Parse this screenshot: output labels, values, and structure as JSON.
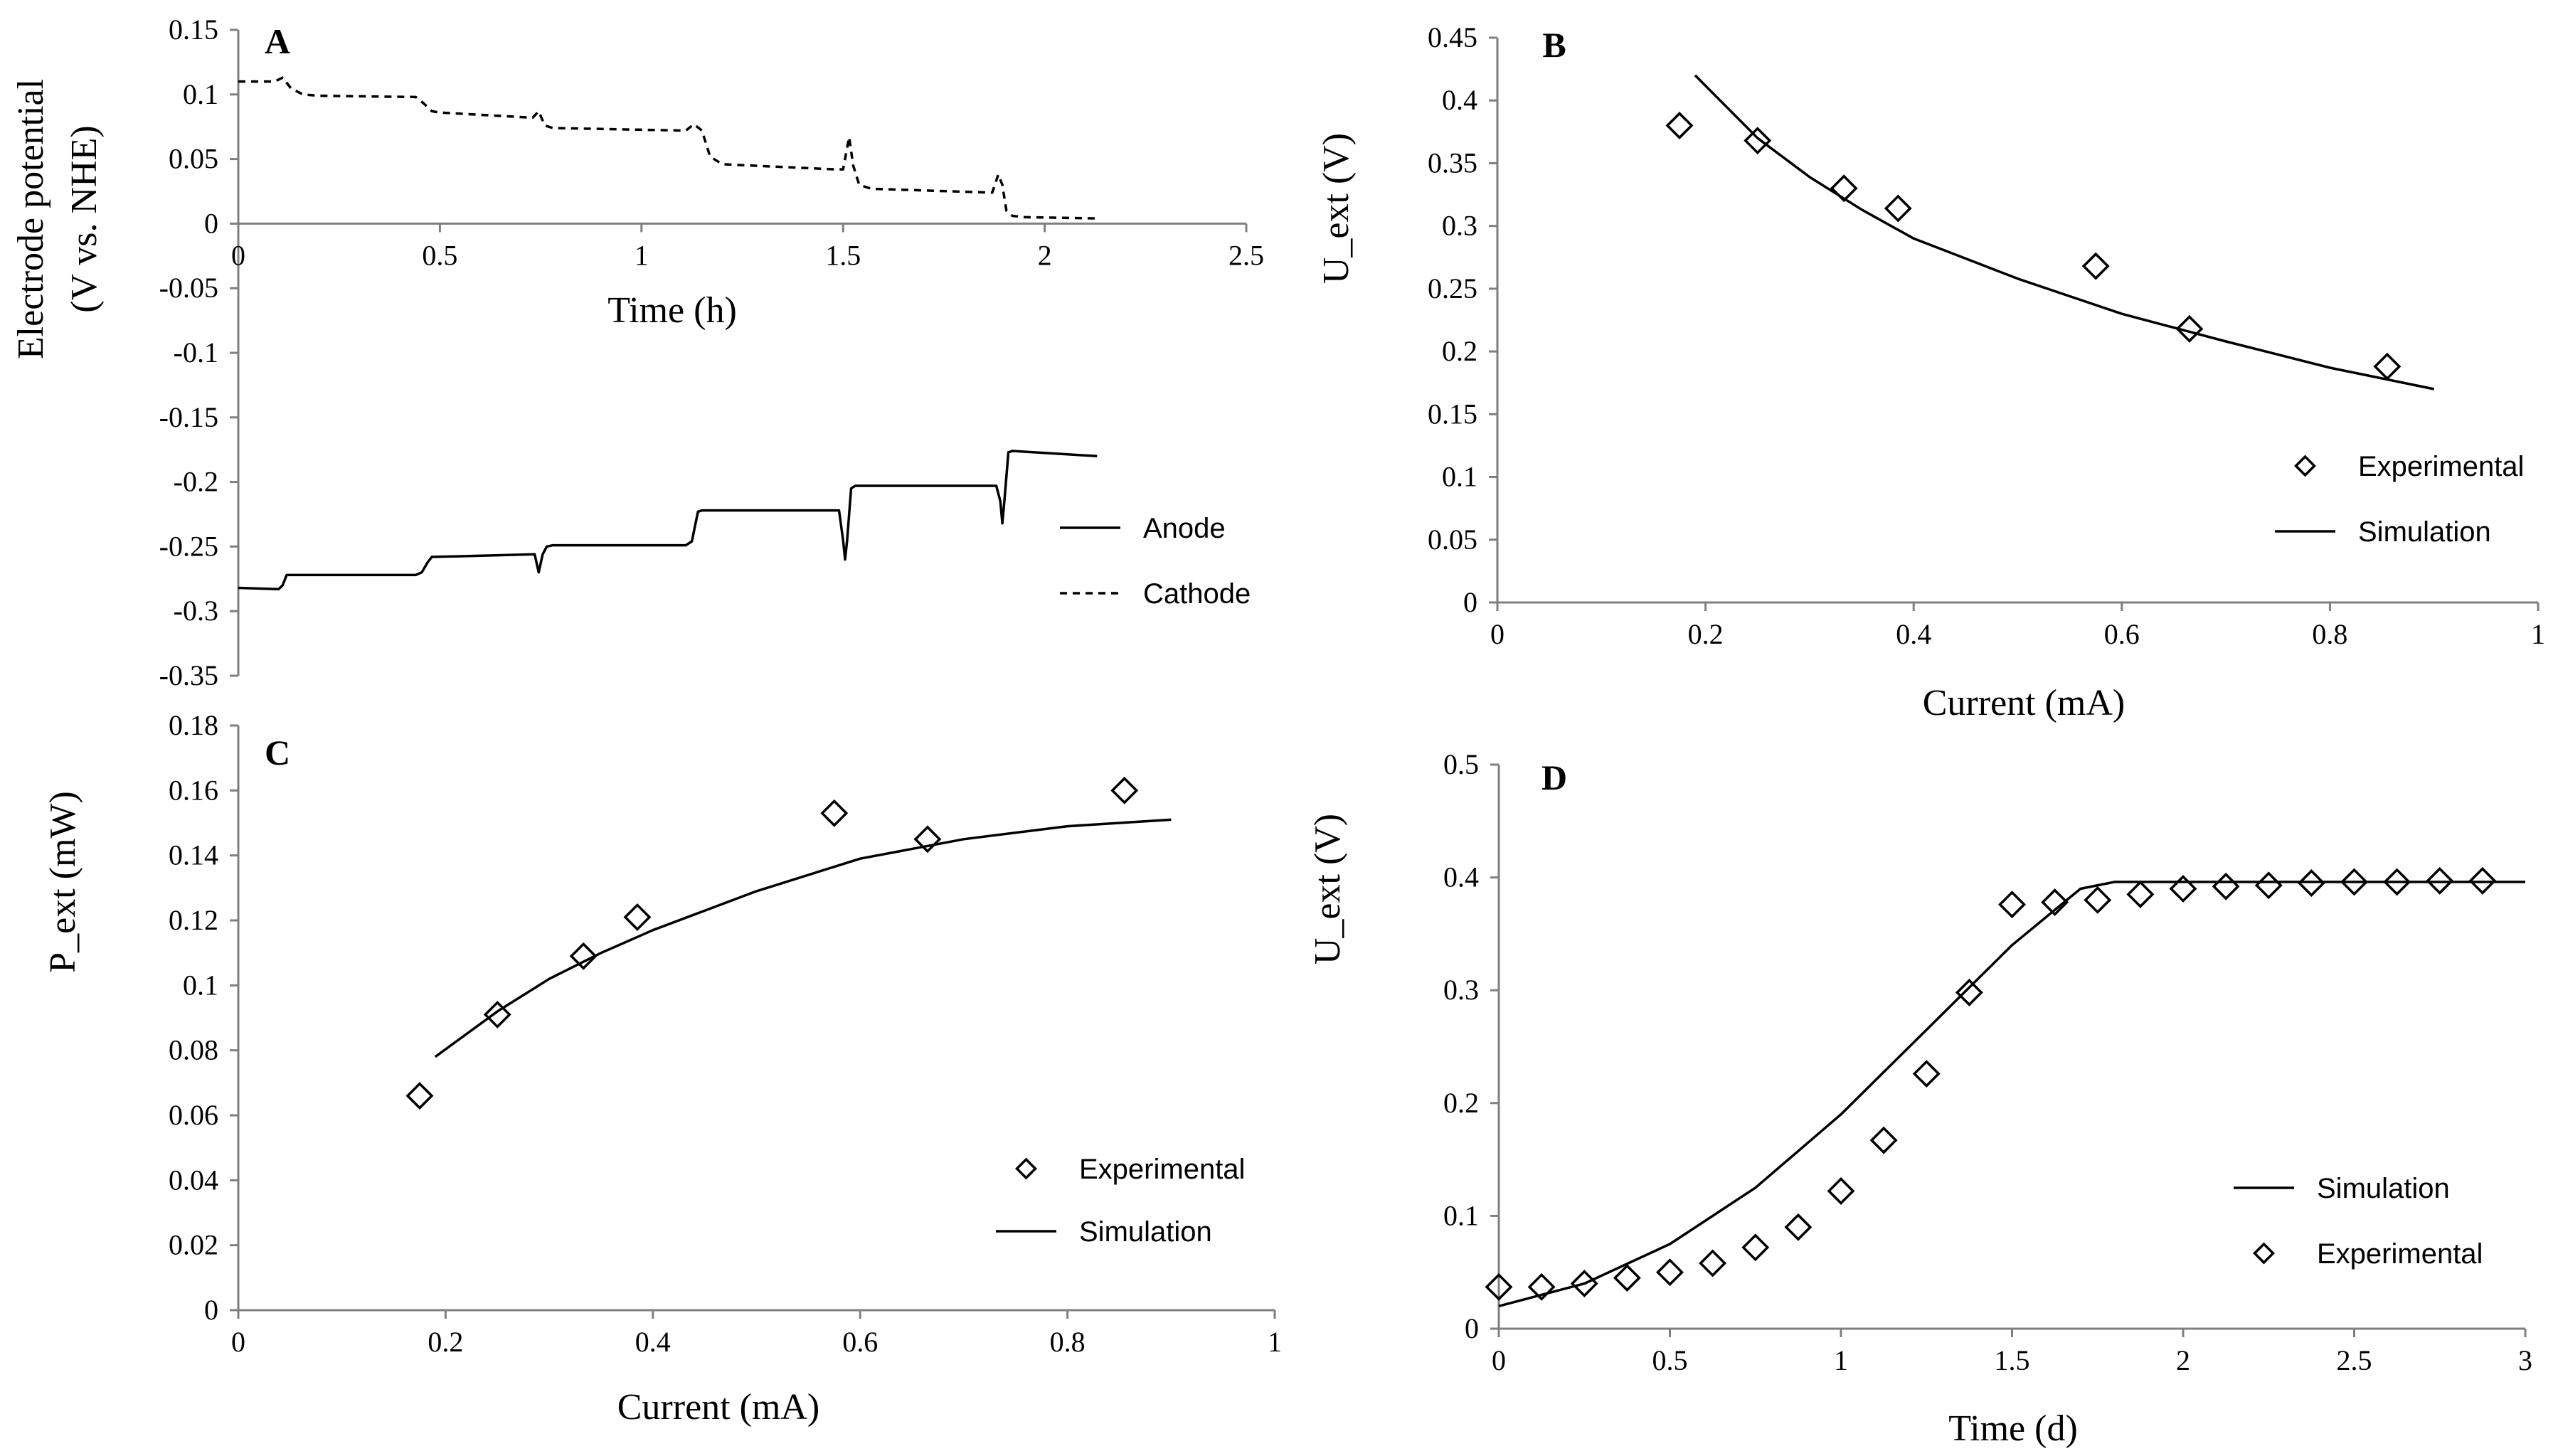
{
  "chart_data": [
    {
      "panel": "A",
      "type": "line",
      "xlabel": "Time  (h)",
      "ylabel": [
        "Electrode potential",
        "(V vs. NHE)"
      ],
      "xlim": [
        0,
        2.5
      ],
      "ylim": [
        -0.35,
        0.15
      ],
      "xticks": [
        "0",
        "0.5",
        "1",
        "1.5",
        "2",
        "2.5"
      ],
      "yticks": [
        "0.15",
        "0.1",
        "0.05",
        "0",
        "-0.05",
        "-0.1",
        "-0.15",
        "-0.2",
        "-0.25",
        "-0.3",
        "-0.35"
      ],
      "legend_position": "right",
      "series": [
        {
          "name": "Anode",
          "style": "solid",
          "x": [
            0,
            0.1,
            0.11,
            0.12,
            0.13,
            0.14,
            0.44,
            0.455,
            0.47,
            0.48,
            0.49,
            0.735,
            0.745,
            0.755,
            0.765,
            0.78,
            1.11,
            1.125,
            1.14,
            1.15,
            1.16,
            1.49,
            1.5,
            1.505,
            1.51,
            1.52,
            1.53,
            1.88,
            1.89,
            1.895,
            1.9,
            1.91,
            1.92,
            2.13
          ],
          "y": [
            -0.282,
            -0.283,
            -0.28,
            -0.272,
            -0.272,
            -0.272,
            -0.272,
            -0.27,
            -0.262,
            -0.258,
            -0.258,
            -0.256,
            -0.27,
            -0.256,
            -0.25,
            -0.249,
            -0.249,
            -0.246,
            -0.223,
            -0.222,
            -0.222,
            -0.222,
            -0.245,
            -0.26,
            -0.245,
            -0.205,
            -0.203,
            -0.203,
            -0.215,
            -0.232,
            -0.215,
            -0.177,
            -0.176,
            -0.18
          ]
        },
        {
          "name": "Cathode",
          "style": "dashed",
          "x": [
            0,
            0.09,
            0.11,
            0.13,
            0.16,
            0.2,
            0.44,
            0.46,
            0.48,
            0.5,
            0.73,
            0.745,
            0.76,
            0.78,
            1.11,
            1.13,
            1.15,
            1.17,
            1.2,
            1.48,
            1.5,
            1.515,
            1.525,
            1.54,
            1.57,
            1.87,
            1.885,
            1.895,
            1.905,
            1.92,
            1.95,
            2.13
          ],
          "y": [
            0.11,
            0.11,
            0.113,
            0.105,
            0.1,
            0.099,
            0.098,
            0.093,
            0.087,
            0.086,
            0.082,
            0.087,
            0.076,
            0.074,
            0.072,
            0.077,
            0.072,
            0.052,
            0.046,
            0.042,
            0.042,
            0.067,
            0.045,
            0.03,
            0.027,
            0.024,
            0.038,
            0.03,
            0.01,
            0.006,
            0.005,
            0.004
          ]
        }
      ]
    },
    {
      "panel": "B",
      "type": "scatter",
      "xlabel": "Current (mA)",
      "ylabel": "U_ext (V)",
      "xlim": [
        0,
        1
      ],
      "ylim": [
        0,
        0.45
      ],
      "xticks": [
        "0",
        "0.2",
        "0.4",
        "0.6",
        "0.8",
        "1"
      ],
      "yticks": [
        "0.45",
        "0.4",
        "0.35",
        "0.3",
        "0.25",
        "0.2",
        "0.15",
        "0.1",
        "0.05",
        "0"
      ],
      "legend_position": "bottom-right",
      "series": [
        {
          "name": "Experimental",
          "marker": "diamond",
          "x": [
            0.175,
            0.25,
            0.333,
            0.385,
            0.575,
            0.665,
            0.855
          ],
          "y": [
            0.38,
            0.368,
            0.33,
            0.314,
            0.268,
            0.218,
            0.188
          ]
        },
        {
          "name": "Simulation",
          "style": "solid",
          "x": [
            0.19,
            0.25,
            0.3,
            0.35,
            0.4,
            0.5,
            0.6,
            0.7,
            0.8,
            0.9
          ],
          "y": [
            0.42,
            0.37,
            0.339,
            0.313,
            0.29,
            0.258,
            0.23,
            0.208,
            0.187,
            0.17
          ]
        }
      ]
    },
    {
      "panel": "C",
      "type": "scatter",
      "xlabel": "Current (mA)",
      "ylabel": "P_ext (mW)",
      "xlim": [
        0,
        1
      ],
      "ylim": [
        0,
        0.18
      ],
      "xticks": [
        "0",
        "0.2",
        "0.4",
        "0.6",
        "0.8",
        "1"
      ],
      "yticks": [
        "0.18",
        "0.16",
        "0.14",
        "0.12",
        "0.1",
        "0.08",
        "0.06",
        "0.04",
        "0.02",
        "0"
      ],
      "legend_position": "bottom-right",
      "series": [
        {
          "name": "Experimental",
          "marker": "diamond",
          "x": [
            0.175,
            0.25,
            0.333,
            0.385,
            0.575,
            0.665,
            0.855
          ],
          "y": [
            0.066,
            0.091,
            0.109,
            0.121,
            0.153,
            0.145,
            0.16
          ]
        },
        {
          "name": "Simulation",
          "style": "solid",
          "x": [
            0.19,
            0.25,
            0.3,
            0.35,
            0.4,
            0.5,
            0.6,
            0.7,
            0.8,
            0.9
          ],
          "y": [
            0.078,
            0.092,
            0.102,
            0.11,
            0.117,
            0.129,
            0.139,
            0.145,
            0.149,
            0.151
          ]
        }
      ]
    },
    {
      "panel": "D",
      "type": "scatter",
      "xlabel": "Time (d)",
      "ylabel": "U_ext (V)",
      "xlim": [
        0,
        3
      ],
      "ylim": [
        0,
        0.5
      ],
      "xticks": [
        "0",
        "0.5",
        "1",
        "1.5",
        "2",
        "2.5",
        "3"
      ],
      "yticks": [
        "0.5",
        "0.4",
        "0.3",
        "0.2",
        "0.1",
        "0"
      ],
      "legend_position": "bottom-right",
      "series": [
        {
          "name": "Simulation",
          "style": "solid",
          "x": [
            0,
            0.25,
            0.5,
            0.75,
            1.0,
            1.25,
            1.5,
            1.7,
            1.8,
            1.9,
            2.0,
            2.5,
            3.0
          ],
          "y": [
            0.02,
            0.04,
            0.075,
            0.125,
            0.19,
            0.265,
            0.34,
            0.39,
            0.396,
            0.396,
            0.396,
            0.396,
            0.396
          ]
        },
        {
          "name": "Experimental",
          "marker": "diamond",
          "x": [
            0,
            0.125,
            0.25,
            0.375,
            0.5,
            0.625,
            0.75,
            0.875,
            1.0,
            1.125,
            1.25,
            1.375,
            1.5,
            1.625,
            1.75,
            1.875,
            2.0,
            2.125,
            2.25,
            2.375,
            2.5,
            2.625,
            2.75,
            2.875
          ],
          "y": [
            0.037,
            0.037,
            0.04,
            0.045,
            0.05,
            0.058,
            0.072,
            0.09,
            0.122,
            0.167,
            0.226,
            0.298,
            0.376,
            0.378,
            0.38,
            0.385,
            0.39,
            0.392,
            0.393,
            0.395,
            0.396,
            0.396,
            0.397,
            0.397
          ]
        }
      ]
    }
  ]
}
